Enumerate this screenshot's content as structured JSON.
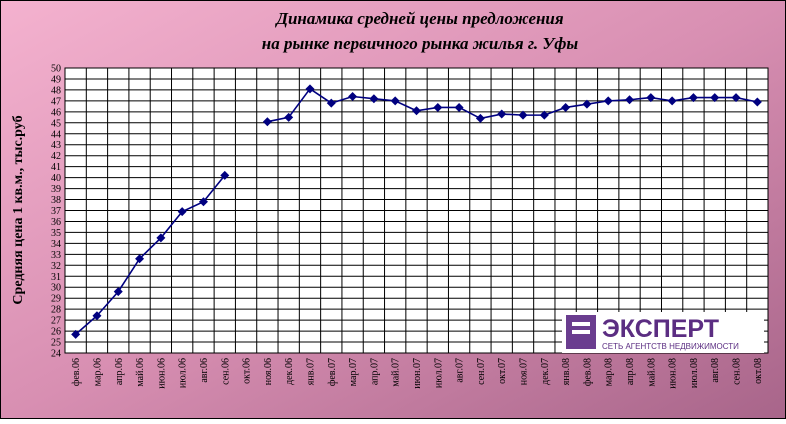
{
  "chart_data": {
    "type": "line",
    "title": [
      "Динамика средней цены предложения",
      "на рынке первичного рынка жилья г. Уфы"
    ],
    "y_label": "Средняя цена 1 кв.м., тыс.руб",
    "categories": [
      "фев.06",
      "мар.06",
      "апр.06",
      "май.06",
      "июн.06",
      "июл.06",
      "авг.06",
      "сен.06",
      "окт.06",
      "ноя.06",
      "дек.06",
      "янв.07",
      "фев.07",
      "мар.07",
      "апр.07",
      "май.07",
      "июн.07",
      "июл.07",
      "авг.07",
      "сен.07",
      "окт.07",
      "ноя.07",
      "дек.07",
      "янв.08",
      "фев.08",
      "мар.08",
      "апр.08",
      "май.08",
      "июн.08",
      "июл.08",
      "авг.08",
      "сен.08",
      "окт.08"
    ],
    "values": [
      25.7,
      27.4,
      29.6,
      32.6,
      34.5,
      36.9,
      37.8,
      40.2,
      null,
      45.1,
      45.5,
      48.1,
      46.8,
      47.4,
      47.2,
      47.0,
      46.1,
      46.4,
      46.4,
      45.4,
      45.8,
      45.7,
      45.7,
      46.4,
      46.7,
      47.0,
      47.1,
      47.3,
      47.0,
      47.3,
      47.3,
      47.3,
      46.9
    ],
    "color": "#000080",
    "ylim": [
      24,
      50
    ],
    "yticks": [
      24,
      25,
      26,
      27,
      28,
      29,
      30,
      31,
      32,
      33,
      34,
      35,
      36,
      37,
      38,
      39,
      40,
      41,
      42,
      43,
      44,
      45,
      46,
      47,
      48,
      49,
      50
    ],
    "grid": true
  },
  "logo": {
    "name": "ЭКСПЕРТ",
    "tagline": "СЕТЬ АГЕНТСТВ НЕДВИЖИМОСТИ"
  }
}
